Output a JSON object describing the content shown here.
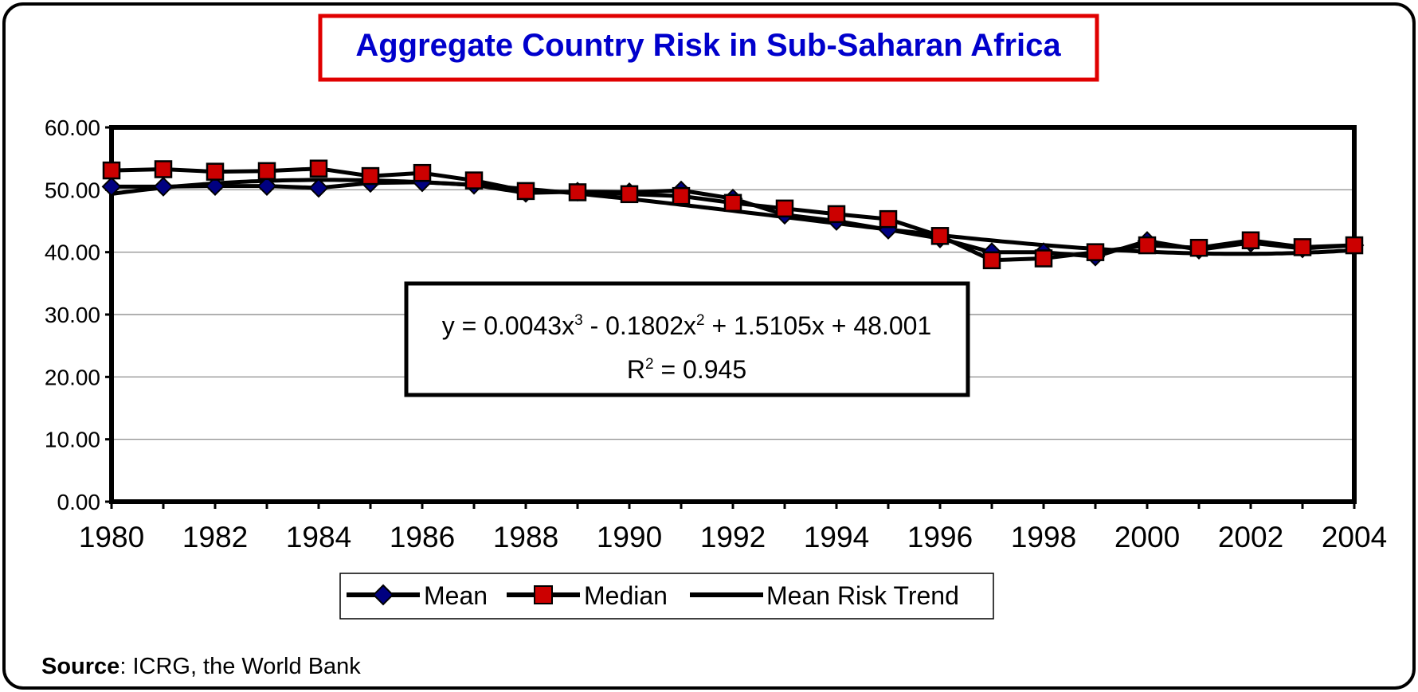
{
  "chart_data": {
    "type": "line",
    "title": "Aggregate Country Risk in Sub-Saharan Africa",
    "x": [
      1980,
      1981,
      1982,
      1983,
      1984,
      1985,
      1986,
      1987,
      1988,
      1989,
      1990,
      1991,
      1992,
      1993,
      1994,
      1995,
      1996,
      1997,
      1998,
      1999,
      2000,
      2001,
      2002,
      2003,
      2004
    ],
    "x_tick_labels": [
      "1980",
      "1982",
      "1984",
      "1986",
      "1988",
      "1990",
      "1992",
      "1994",
      "1996",
      "1998",
      "2000",
      "2002",
      "2004"
    ],
    "y_tick_labels": [
      "0.00",
      "10.00",
      "20.00",
      "30.00",
      "40.00",
      "50.00",
      "60.00"
    ],
    "ylim": [
      0,
      60
    ],
    "xlim": [
      1980,
      2004
    ],
    "grid": "horizontal",
    "legend_position": "bottom",
    "series": [
      {
        "name": "Mean",
        "marker": "diamond",
        "color": "#000080",
        "values": [
          50.5,
          50.5,
          50.6,
          50.6,
          50.3,
          51.1,
          51.2,
          50.8,
          49.5,
          49.7,
          49.6,
          49.9,
          48.6,
          46.0,
          45.0,
          43.6,
          42.2,
          40.0,
          40.0,
          39.3,
          41.8,
          40.4,
          41.5,
          40.6,
          41.1
        ]
      },
      {
        "name": "Median",
        "marker": "square",
        "color": "#cc0000",
        "values": [
          53.1,
          53.3,
          52.9,
          53.0,
          53.4,
          52.2,
          52.7,
          51.5,
          49.8,
          49.6,
          49.3,
          49.0,
          47.9,
          47.0,
          46.1,
          45.3,
          42.6,
          38.7,
          39.0,
          40.0,
          41.1,
          40.7,
          41.9,
          40.8,
          41.1
        ]
      },
      {
        "name": "Mean Risk Trend",
        "marker": "none",
        "color": "#000000",
        "equation_coefficients": [
          0.0043,
          -0.1802,
          1.5105,
          48.001
        ]
      }
    ],
    "annotation": {
      "eq_prefix": "y = 0.0043x",
      "eq_exp1": "3",
      "eq_mid": " - 0.1802x",
      "eq_exp2": "2",
      "eq_suffix": " + 1.5105x + 48.001",
      "r2_prefix": "R",
      "r2_exp": "2",
      "r2_suffix": " = 0.945"
    }
  },
  "source": {
    "label": "Source",
    "text": ":  ICRG, the World Bank"
  }
}
